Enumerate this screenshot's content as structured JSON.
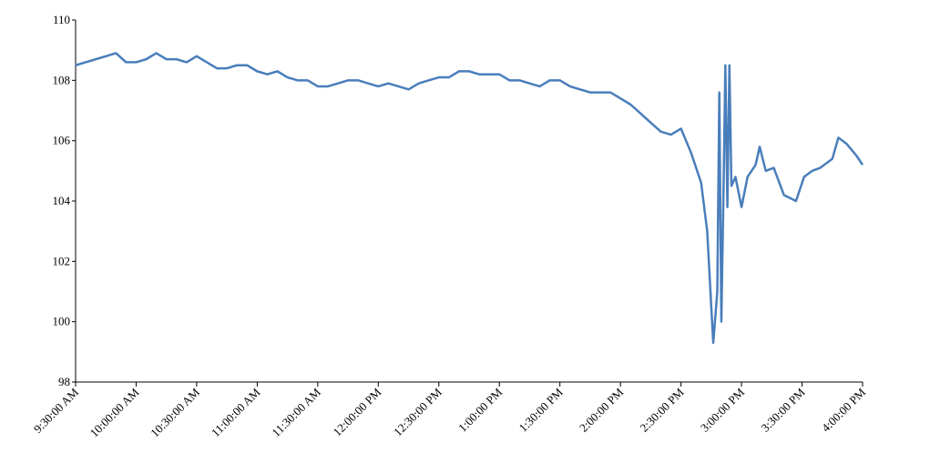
{
  "chart_data": {
    "type": "line",
    "x": [
      "9:30:00 AM",
      "9:35:00 AM",
      "9:40:00 AM",
      "9:45:00 AM",
      "9:50:00 AM",
      "9:55:00 AM",
      "10:00:00 AM",
      "10:05:00 AM",
      "10:10:00 AM",
      "10:15:00 AM",
      "10:20:00 AM",
      "10:25:00 AM",
      "10:30:00 AM",
      "10:35:00 AM",
      "10:40:00 AM",
      "10:45:00 AM",
      "10:50:00 AM",
      "10:55:00 AM",
      "11:00:00 AM",
      "11:05:00 AM",
      "11:10:00 AM",
      "11:15:00 AM",
      "11:20:00 AM",
      "11:25:00 AM",
      "11:30:00 AM",
      "11:35:00 AM",
      "11:40:00 AM",
      "11:45:00 AM",
      "11:50:00 AM",
      "11:55:00 AM",
      "12:00:00 PM",
      "12:05:00 PM",
      "12:10:00 PM",
      "12:15:00 PM",
      "12:20:00 PM",
      "12:25:00 PM",
      "12:30:00 PM",
      "12:35:00 PM",
      "12:40:00 PM",
      "12:45:00 PM",
      "12:50:00 PM",
      "12:55:00 PM",
      "1:00:00 PM",
      "1:05:00 PM",
      "1:10:00 PM",
      "1:15:00 PM",
      "1:20:00 PM",
      "1:25:00 PM",
      "1:30:00 PM",
      "1:35:00 PM",
      "1:40:00 PM",
      "1:45:00 PM",
      "1:50:00 PM",
      "1:55:00 PM",
      "2:00:00 PM",
      "2:05:00 PM",
      "2:10:00 PM",
      "2:15:00 PM",
      "2:20:00 PM",
      "2:25:00 PM",
      "2:30:00 PM",
      "2:35:00 PM",
      "2:40:00 PM",
      "2:43:00 PM",
      "2:45:00 PM",
      "2:46:00 PM",
      "2:48:00 PM",
      "2:49:00 PM",
      "2:50:00 PM",
      "2:51:00 PM",
      "2:52:00 PM",
      "2:53:00 PM",
      "2:54:00 PM",
      "2:55:00 PM",
      "2:57:00 PM",
      "3:00:00 PM",
      "3:03:00 PM",
      "3:07:00 PM",
      "3:09:00 PM",
      "3:12:00 PM",
      "3:16:00 PM",
      "3:21:00 PM",
      "3:27:00 PM",
      "3:31:00 PM",
      "3:35:00 PM",
      "3:39:00 PM",
      "3:45:00 PM",
      "3:48:00 PM",
      "3:52:00 PM",
      "3:57:00 PM",
      "4:00:00 PM"
    ],
    "series": [
      {
        "color": "#4a7ebb",
        "values": [
          108.5,
          108.6,
          108.7,
          108.8,
          108.9,
          108.6,
          108.6,
          108.7,
          108.9,
          108.7,
          108.7,
          108.6,
          108.8,
          108.6,
          108.4,
          108.4,
          108.5,
          108.5,
          108.3,
          108.2,
          108.3,
          108.1,
          108.0,
          108.0,
          107.8,
          107.8,
          107.9,
          108.0,
          108.0,
          107.9,
          107.8,
          107.9,
          107.8,
          107.7,
          107.9,
          108.0,
          108.1,
          108.1,
          108.3,
          108.3,
          108.2,
          108.2,
          108.2,
          108.0,
          108.0,
          107.9,
          107.8,
          108.0,
          108.0,
          107.8,
          107.7,
          107.6,
          107.6,
          107.6,
          107.4,
          107.2,
          106.9,
          106.6,
          106.3,
          106.2,
          106.4,
          105.6,
          104.6,
          103.0,
          100.5,
          99.3,
          101.0,
          107.6,
          100.0,
          104.0,
          108.5,
          103.8,
          108.5,
          104.5,
          104.8,
          103.8,
          104.8,
          105.2,
          105.8,
          105.0,
          105.1,
          104.2,
          104.0,
          104.8,
          105.0,
          105.1,
          105.4,
          106.1,
          105.9,
          105.5,
          105.2
        ]
      }
    ],
    "xlim": [
      "9:30:00 AM",
      "4:00:00 PM"
    ],
    "xticks": [
      "9:30:00 AM",
      "10:00:00 AM",
      "10:30:00 AM",
      "11:00:00 AM",
      "11:30:00 AM",
      "12:00:00 PM",
      "12:30:00 PM",
      "1:00:00 PM",
      "1:30:00 PM",
      "2:00:00 PM",
      "2:30:00 PM",
      "3:00:00 PM",
      "3:30:00 PM",
      "4:00:00 PM"
    ],
    "ylim": [
      98,
      110
    ],
    "yticks": [
      98,
      100,
      102,
      104,
      106,
      108,
      110
    ],
    "grid": false
  }
}
